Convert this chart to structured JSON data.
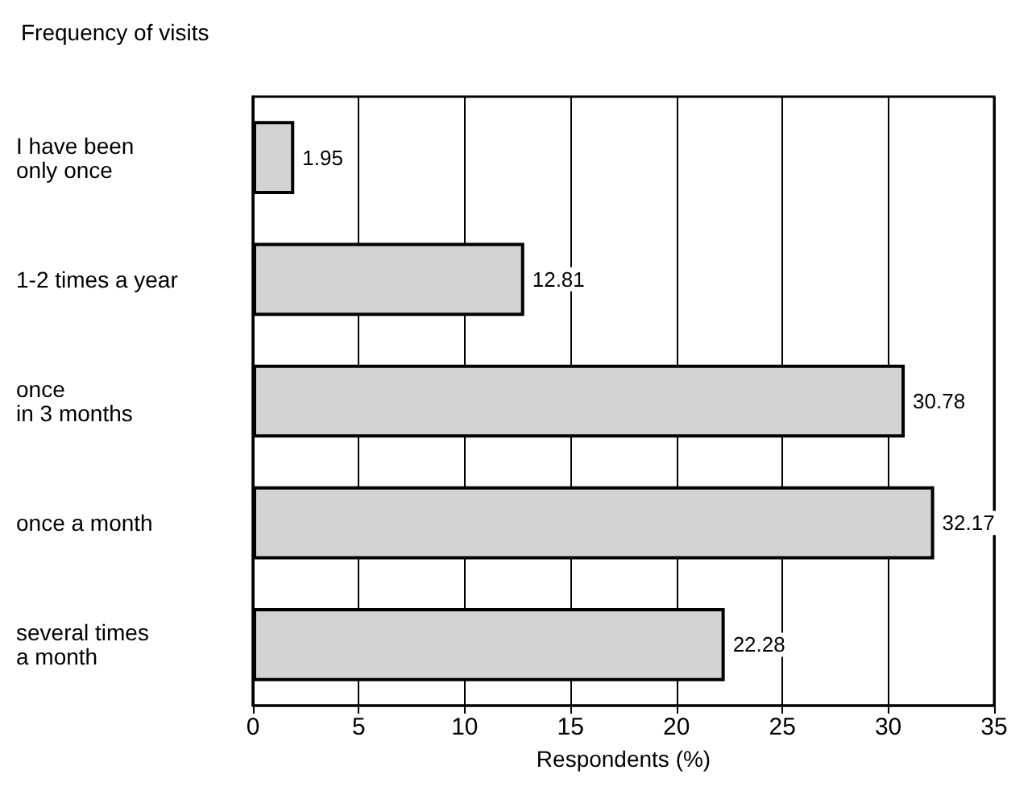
{
  "chart_data": {
    "type": "bar",
    "orientation": "horizontal",
    "title": "Frequency of visits",
    "xlabel": "Respondents (%)",
    "categories": [
      "I have been\nonly once",
      "1-2 times a year",
      "once\nin 3 months",
      "once a month",
      "several times\na month"
    ],
    "values": [
      1.95,
      12.81,
      30.78,
      32.17,
      22.28
    ],
    "color": "#d3d3d3",
    "data_labels": true,
    "xlim": [
      0,
      35
    ],
    "xticks": [
      0,
      5,
      10,
      15,
      20,
      25,
      30,
      35
    ],
    "grid": "x"
  }
}
